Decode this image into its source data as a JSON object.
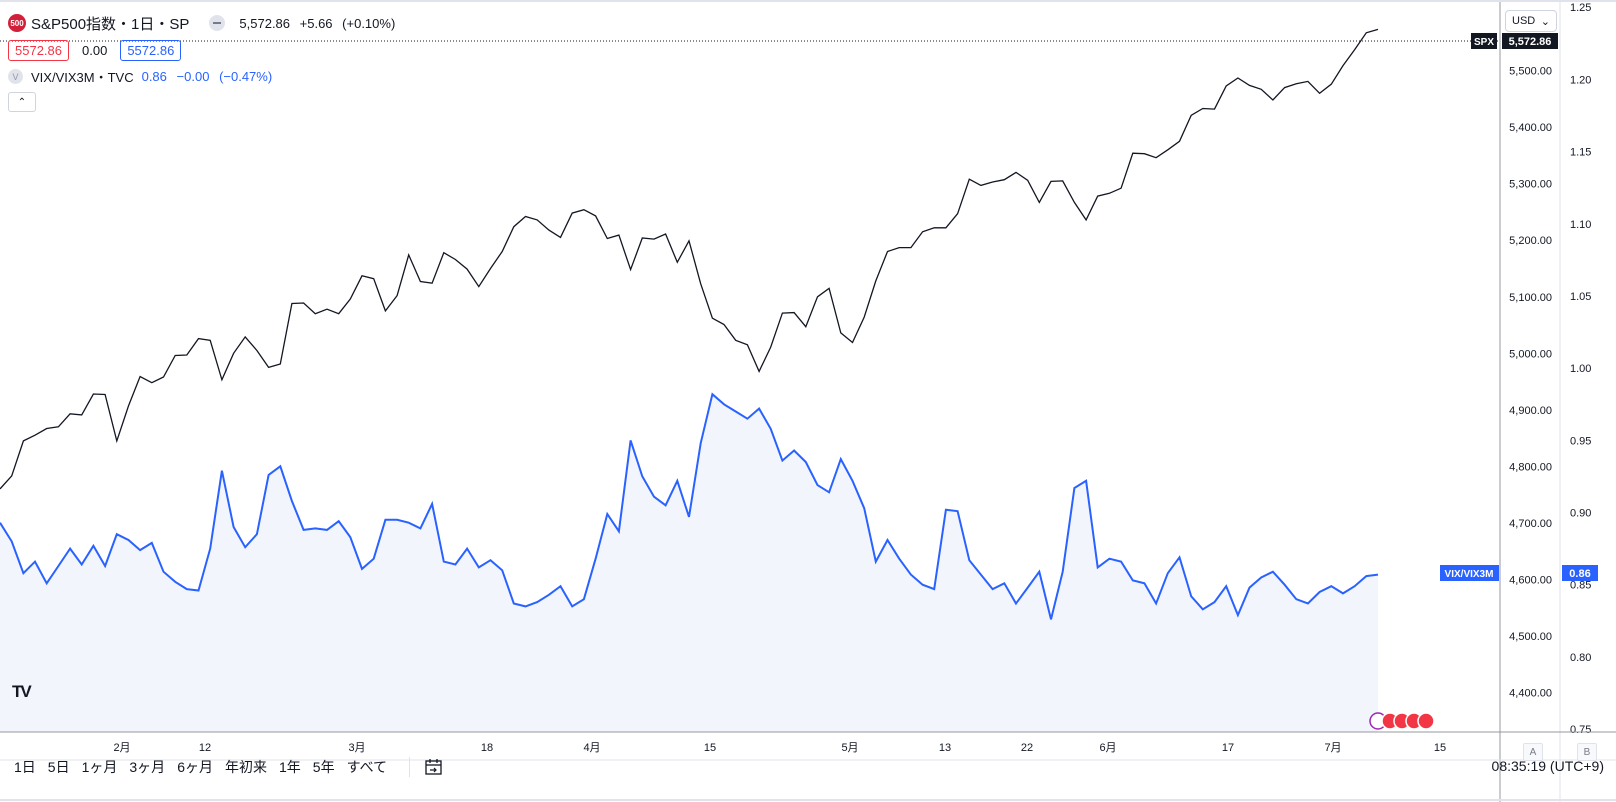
{
  "header": {
    "symbol_badge": "500",
    "title": "S&P500指数・1日・SP",
    "last": "5,572.86",
    "change": "+5.66",
    "change_pct": "(+0.10%)",
    "price_box_red": "5572.86",
    "price_box_mid": "0.00",
    "price_box_blue": "5572.86",
    "vix_icon": "V",
    "vix_title": "VIX/VIX3M・TVC",
    "vix_last": "0.86",
    "vix_change": "−0.00",
    "vix_change_pct": "(−0.47%)",
    "collapse_icon": "chevron-up-icon"
  },
  "currency_label": "USD",
  "tags": {
    "spx_label": "SPX",
    "spx_value": "5,572.86",
    "vix_label": "VIX/VIX3M",
    "vix_value": "0.86"
  },
  "toolbar": {
    "ranges": [
      "1日",
      "5日",
      "1ヶ月",
      "3ヶ月",
      "6ヶ月",
      "年初来",
      "1年",
      "5年",
      "すべて"
    ],
    "clock": "08:35:19 (UTC+9)",
    "scale_a": "A",
    "scale_b": "B"
  },
  "colors": {
    "spx_line": "#131722",
    "vix_line": "#2962ff",
    "vix_fill": "#f3f5fd",
    "red": "#f23645"
  },
  "chart_data": {
    "type": "line",
    "x_tick_labels": [
      "2月",
      "12",
      "3月",
      "18",
      "4月",
      "15",
      "5月",
      "13",
      "22",
      "6月",
      "17",
      "7月",
      "15"
    ],
    "left_axis": {
      "ticks": [
        "4,400.00",
        "4,500.00",
        "4,600.00",
        "4,700.00",
        "4,800.00",
        "4,900.00",
        "5,000.00",
        "5,100.00",
        "5,200.00",
        "5,300.00",
        "5,400.00",
        "5,500.00"
      ],
      "range": [
        4330,
        5625
      ]
    },
    "right_axis": {
      "ticks": [
        "0.75",
        "0.80",
        "0.85",
        "0.90",
        "0.95",
        "1.00",
        "1.05",
        "1.10",
        "1.15",
        "1.20",
        "1.25"
      ],
      "range": [
        0.748,
        1.255
      ]
    },
    "series": [
      {
        "name": "SPX",
        "axis": "left",
        "values": [
          4760,
          4783,
          4845,
          4855,
          4867,
          4870,
          4893,
          4891,
          4928,
          4927,
          4845,
          4907,
          4959,
          4948,
          4958,
          4996,
          4997,
          5026,
          5023,
          4953,
          5000,
          5029,
          5005,
          4975,
          4981,
          5088,
          5089,
          5070,
          5078,
          5070,
          5096,
          5137,
          5132,
          5075,
          5102,
          5174,
          5127,
          5124,
          5178,
          5166,
          5149,
          5118,
          5150,
          5180,
          5224,
          5242,
          5236,
          5218,
          5205,
          5248,
          5254,
          5243,
          5203,
          5209,
          5148,
          5204,
          5202,
          5211,
          5161,
          5199,
          5123,
          5062,
          5051,
          5023,
          5015,
          4968,
          5011,
          5071,
          5072,
          5047,
          5100,
          5115,
          5036,
          5019,
          5064,
          5128,
          5180,
          5187,
          5187,
          5215,
          5222,
          5222,
          5247,
          5308,
          5297,
          5303,
          5307,
          5320,
          5306,
          5267,
          5304,
          5305,
          5267,
          5236,
          5278,
          5283,
          5292,
          5354,
          5353,
          5346,
          5360,
          5375,
          5421,
          5433,
          5432,
          5473,
          5487,
          5474,
          5467,
          5448,
          5470,
          5477,
          5481,
          5460,
          5476,
          5509,
          5537,
          5567,
          5573
        ]
      },
      {
        "name": "VIX/VIX3M",
        "axis": "right",
        "values": [
          0.893,
          0.88,
          0.858,
          0.866,
          0.851,
          0.863,
          0.875,
          0.864,
          0.877,
          0.863,
          0.885,
          0.881,
          0.874,
          0.879,
          0.859,
          0.852,
          0.847,
          0.846,
          0.875,
          0.929,
          0.89,
          0.876,
          0.885,
          0.926,
          0.932,
          0.908,
          0.888,
          0.889,
          0.888,
          0.894,
          0.883,
          0.861,
          0.868,
          0.895,
          0.895,
          0.893,
          0.889,
          0.906,
          0.866,
          0.864,
          0.875,
          0.862,
          0.867,
          0.86,
          0.837,
          0.835,
          0.838,
          0.843,
          0.849,
          0.835,
          0.84,
          0.868,
          0.899,
          0.887,
          0.95,
          0.925,
          0.911,
          0.905,
          0.922,
          0.897,
          0.948,
          0.982,
          0.975,
          0.97,
          0.965,
          0.972,
          0.958,
          0.936,
          0.943,
          0.935,
          0.919,
          0.914,
          0.937,
          0.922,
          0.903,
          0.866,
          0.881,
          0.868,
          0.857,
          0.85,
          0.847,
          0.902,
          0.901,
          0.867,
          0.857,
          0.847,
          0.851,
          0.837,
          0.848,
          0.859,
          0.826,
          0.859,
          0.917,
          0.922,
          0.862,
          0.868,
          0.866,
          0.853,
          0.851,
          0.837,
          0.858,
          0.869,
          0.842,
          0.833,
          0.838,
          0.849,
          0.829,
          0.848,
          0.855,
          0.859,
          0.85,
          0.84,
          0.837,
          0.845,
          0.849,
          0.844,
          0.849,
          0.856,
          0.857
        ]
      }
    ],
    "last_values": {
      "SPX": 5572.86,
      "VIX/VIX3M": 0.86
    }
  }
}
